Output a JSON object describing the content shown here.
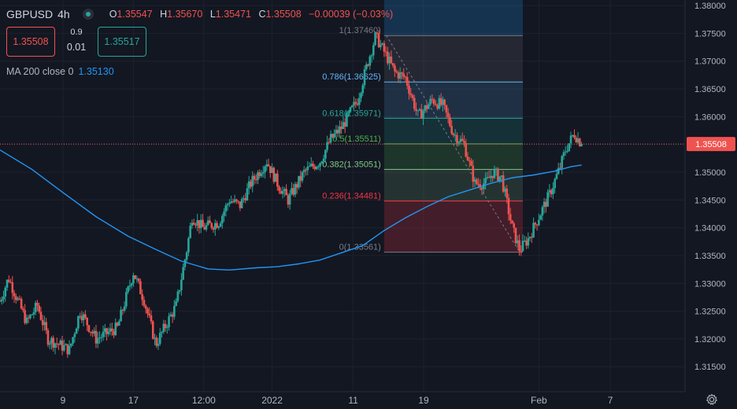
{
  "header": {
    "symbol": "GBPUSD",
    "timeframe": "4h",
    "ohlc": {
      "o_label": "O",
      "o": "1.35547",
      "h_label": "H",
      "h": "1.35670",
      "l_label": "L",
      "l": "1.35471",
      "c_label": "C",
      "c": "1.35508",
      "change": "−0.00039 (−0.03%)"
    }
  },
  "trade": {
    "sell_price": "1.35508",
    "spread_top": "0.9",
    "spread_bottom": "0.01",
    "buy_price": "1.35517"
  },
  "indicator": {
    "label": "MA 200 close 0",
    "value": "1.35130"
  },
  "colors": {
    "background": "#131722",
    "up": "#26a69a",
    "down": "#ef5350",
    "ma": "#2196f3",
    "grid": "#1e222d",
    "text": "#b2b5be"
  },
  "chart_data": {
    "type": "candlestick",
    "y_axis": {
      "range": [
        1.3105,
        1.381
      ],
      "ticks": [
        "1.38000",
        "1.37500",
        "1.37000",
        "1.36500",
        "1.36000",
        "1.35500",
        "1.35000",
        "1.34500",
        "1.34000",
        "1.33500",
        "1.33000",
        "1.32500",
        "1.32000",
        "1.31500"
      ],
      "tick_values": [
        1.38,
        1.375,
        1.37,
        1.365,
        1.36,
        1.355,
        1.35,
        1.345,
        1.34,
        1.335,
        1.33,
        1.325,
        1.32,
        1.315
      ]
    },
    "x_axis": {
      "range_days": [
        0,
        64.2
      ],
      "tick_labels": [
        "9",
        "17",
        "12:00",
        "2022",
        "11",
        "19",
        "Feb",
        "7"
      ],
      "tick_positions_days": [
        5.9,
        12.5,
        19.1,
        25.5,
        33.1,
        39.7,
        50.5,
        57.2
      ]
    },
    "last_price": {
      "value": 1.35508,
      "label": "1.35508"
    },
    "candles_keypoints": [
      [
        0,
        1.3268
      ],
      [
        0.8,
        1.331
      ],
      [
        2.5,
        1.323
      ],
      [
        3.5,
        1.326
      ],
      [
        4.5,
        1.32
      ],
      [
        6.5,
        1.318
      ],
      [
        7.5,
        1.325
      ],
      [
        9,
        1.32
      ],
      [
        11,
        1.322
      ],
      [
        12.5,
        1.332
      ],
      [
        13.5,
        1.327
      ],
      [
        14.6,
        1.319
      ],
      [
        16.5,
        1.326
      ],
      [
        17.5,
        1.336
      ],
      [
        18,
        1.342
      ],
      [
        19,
        1.34
      ],
      [
        20.5,
        1.341
      ],
      [
        21.5,
        1.345
      ],
      [
        22.5,
        1.344
      ],
      [
        23.5,
        1.348
      ],
      [
        25,
        1.352
      ],
      [
        26,
        1.348
      ],
      [
        27,
        1.345
      ],
      [
        28.5,
        1.35
      ],
      [
        30,
        1.352
      ],
      [
        31,
        1.356
      ],
      [
        32,
        1.358
      ],
      [
        33.5,
        1.363
      ],
      [
        34.5,
        1.37
      ],
      [
        35.2,
        1.3745
      ],
      [
        36.2,
        1.371
      ],
      [
        37,
        1.368
      ],
      [
        38,
        1.367
      ],
      [
        39.2,
        1.36
      ],
      [
        40.5,
        1.363
      ],
      [
        41.5,
        1.362
      ],
      [
        42.5,
        1.357
      ],
      [
        43.5,
        1.355
      ],
      [
        44.5,
        1.348
      ],
      [
        45.5,
        1.348
      ],
      [
        46.2,
        1.35
      ],
      [
        47,
        1.349
      ],
      [
        48,
        1.34
      ],
      [
        48.7,
        1.336
      ],
      [
        49.5,
        1.338
      ],
      [
        50.5,
        1.342
      ],
      [
        51.5,
        1.346
      ],
      [
        52.5,
        1.351
      ],
      [
        53,
        1.354
      ],
      [
        53.8,
        1.357
      ],
      [
        54.5,
        1.3551
      ]
    ],
    "ma200": {
      "name": "MA 200 close 0",
      "points": [
        [
          0,
          1.354
        ],
        [
          3,
          1.3505
        ],
        [
          6,
          1.3462
        ],
        [
          9,
          1.342
        ],
        [
          12,
          1.3385
        ],
        [
          14.5,
          1.3362
        ],
        [
          17,
          1.334
        ],
        [
          19.5,
          1.3326
        ],
        [
          21.5,
          1.3324
        ],
        [
          24,
          1.3328
        ],
        [
          26,
          1.333
        ],
        [
          28,
          1.3335
        ],
        [
          30,
          1.3342
        ],
        [
          32,
          1.3355
        ],
        [
          34,
          1.3368
        ],
        [
          36,
          1.3395
        ],
        [
          38,
          1.3418
        ],
        [
          40,
          1.3438
        ],
        [
          42,
          1.3456
        ],
        [
          44,
          1.3468
        ],
        [
          46,
          1.348
        ],
        [
          48,
          1.349
        ],
        [
          50,
          1.3495
        ],
        [
          52,
          1.3502
        ],
        [
          53.5,
          1.351
        ],
        [
          54.5,
          1.3513
        ]
      ]
    },
    "fibonacci": {
      "x_range_days": [
        36.0,
        49.0
      ],
      "levels": [
        {
          "ratio": "1",
          "price": 1.3746,
          "label": "1(1.37460)",
          "color": "#787b86"
        },
        {
          "ratio": "0.786",
          "price": 1.36625,
          "label": "0.786(1.36625)",
          "color": "#64b5f6"
        },
        {
          "ratio": "0.618",
          "price": 1.35971,
          "label": "0.618(1.35971)",
          "color": "#26a69a"
        },
        {
          "ratio": "0.5",
          "price": 1.35511,
          "label": "0.5(1.35511)",
          "color": "#4caf50"
        },
        {
          "ratio": "0.382",
          "price": 1.35051,
          "label": "0.382(1.35051)",
          "color": "#81c784"
        },
        {
          "ratio": "0.236",
          "price": 1.34481,
          "label": "0.236(1.34481)",
          "color": "#f23645"
        },
        {
          "ratio": "0",
          "price": 1.33561,
          "label": "0(1.33561)",
          "color": "#787b86"
        }
      ]
    }
  }
}
